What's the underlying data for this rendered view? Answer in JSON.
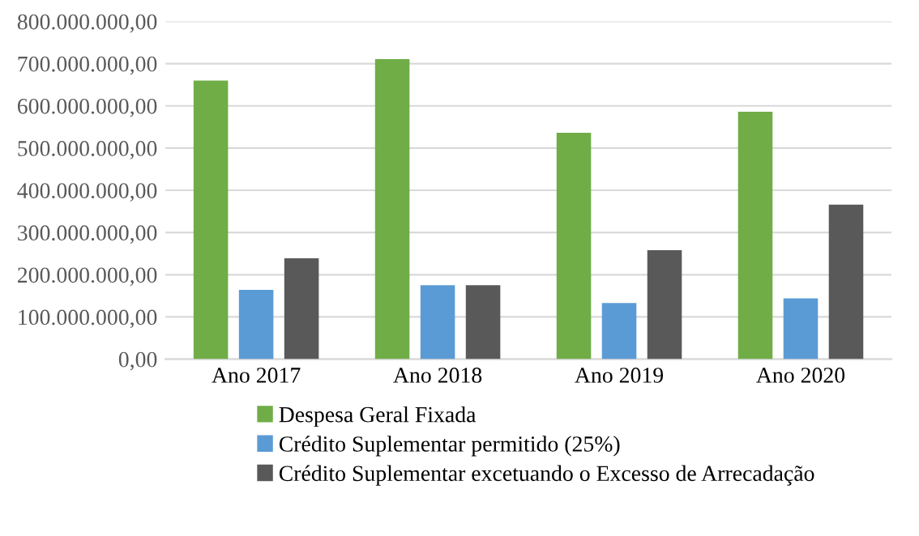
{
  "chart_data": {
    "type": "bar",
    "categories": [
      "Ano 2017",
      "Ano 2018",
      "Ano 2019",
      "Ano 2020"
    ],
    "series": [
      {
        "name": "Despesa Geral Fixada",
        "color": "#70ad47",
        "values": [
          660000000,
          711000000,
          536000000,
          586000000
        ]
      },
      {
        "name": "Crédito Suplementar permitido (25%)",
        "color": "#5b9bd5",
        "values": [
          164000000,
          175000000,
          133000000,
          144000000
        ]
      },
      {
        "name": "Crédito Suplementar excetuando o Excesso de Arrecadação",
        "color": "#595959",
        "values": [
          239000000,
          175000000,
          258000000,
          366000000
        ]
      }
    ],
    "ylim": [
      0,
      800000000
    ],
    "yticks": [
      {
        "value": 0,
        "label": "0,00"
      },
      {
        "value": 100000000,
        "label": "100.000.000,00"
      },
      {
        "value": 200000000,
        "label": "200.000.000,00"
      },
      {
        "value": 300000000,
        "label": "300.000.000,00"
      },
      {
        "value": 400000000,
        "label": "400.000.000,00"
      },
      {
        "value": 500000000,
        "label": "500.000.000,00"
      },
      {
        "value": 600000000,
        "label": "600.000.000,00"
      },
      {
        "value": 700000000,
        "label": "700.000.000,00"
      },
      {
        "value": 800000000,
        "label": "800.000.000,00"
      }
    ],
    "grid": "y",
    "legend": "bottom"
  }
}
